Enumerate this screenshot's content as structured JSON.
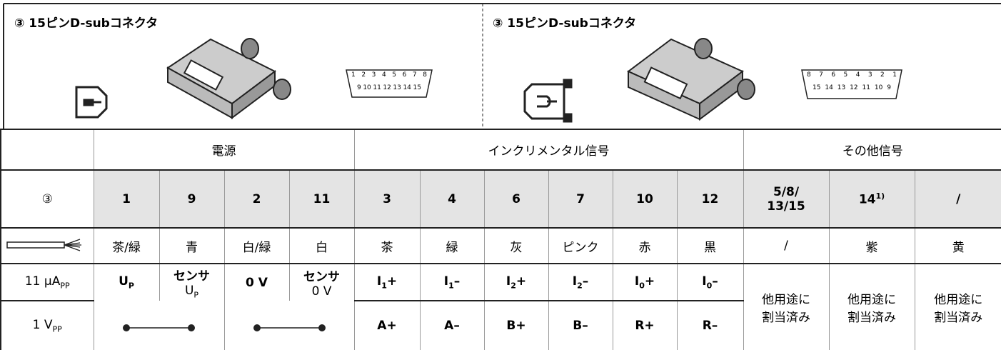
{
  "top": {
    "left": {
      "title": "③ 15ピンD-subコネクタ",
      "pins_row1": [
        "1",
        "2",
        "3",
        "4",
        "5",
        "6",
        "7",
        "8"
      ],
      "pins_row2": [
        "9",
        "10",
        "11",
        "12",
        "13",
        "14",
        "15"
      ]
    },
    "right": {
      "title": "③ 15ピンD-subコネクタ",
      "pins_row1": [
        "8",
        "7",
        "6",
        "5",
        "4",
        "3",
        "2",
        "1"
      ],
      "pins_row2": [
        "15",
        "14",
        "13",
        "12",
        "11",
        "10",
        "9"
      ]
    }
  },
  "table": {
    "groups": [
      "電源",
      "インクリメンタル信号",
      "その他信号"
    ],
    "pins": [
      "③",
      "1",
      "9",
      "2",
      "11",
      "3",
      "4",
      "6",
      "7",
      "10",
      "12",
      [
        [
          {
            "text": "5/8/"
          }
        ],
        [
          {
            "text": "13/15"
          }
        ]
      ],
      [
        [
          {
            "text": "14"
          },
          {
            "text": "1)",
            "sup": true
          }
        ]
      ],
      "/"
    ],
    "colors": [
      "茶/緑",
      "青",
      "白/緑",
      "白",
      "茶",
      "緑",
      "灰",
      "ピンク",
      "赤",
      "黒",
      "/",
      "紫",
      "黄"
    ],
    "signals": {
      "label": [
        [
          {
            "text": "11 µA"
          },
          {
            "text": "PP",
            "sub": true
          }
        ]
      ],
      "cells": [
        [
          [
            {
              "text": "U"
            },
            {
              "text": "P",
              "sub": true
            }
          ]
        ],
        [
          [
            {
              "text": "センサ"
            }
          ],
          [
            {
              "text": "U"
            },
            {
              "text": "P",
              "sub": true
            }
          ]
        ],
        [
          [
            {
              "text": "0 V"
            }
          ]
        ],
        [
          [
            {
              "text": "センサ"
            }
          ],
          [
            {
              "text": "0 V"
            }
          ]
        ],
        [
          [
            {
              "text": "I"
            },
            {
              "text": "1",
              "sub": true
            },
            {
              "text": "+"
            }
          ]
        ],
        [
          [
            {
              "text": "I"
            },
            {
              "text": "1",
              "sub": true
            },
            {
              "text": "–"
            }
          ]
        ],
        [
          [
            {
              "text": "I"
            },
            {
              "text": "2",
              "sub": true
            },
            {
              "text": "+"
            }
          ]
        ],
        [
          [
            {
              "text": "I"
            },
            {
              "text": "2",
              "sub": true
            },
            {
              "text": "–"
            }
          ]
        ],
        [
          [
            {
              "text": "I"
            },
            {
              "text": "0",
              "sub": true
            },
            {
              "text": "+"
            }
          ]
        ],
        [
          [
            {
              "text": "I"
            },
            {
              "text": "0",
              "sub": true
            },
            {
              "text": "–"
            }
          ]
        ],
        [
          [
            {
              "text": "他用途に"
            }
          ],
          [
            {
              "text": "割当済み"
            }
          ]
        ],
        [
          [
            {
              "text": "他用途に"
            }
          ],
          [
            {
              "text": "割当済み"
            }
          ]
        ],
        [
          [
            {
              "text": "他用途に"
            }
          ],
          [
            {
              "text": "割当済み"
            }
          ]
        ]
      ]
    },
    "analog": {
      "label": [
        [
          {
            "text": "1 V"
          },
          {
            "text": "PP",
            "sub": true
          }
        ]
      ],
      "cells": [
        "A+",
        "A–",
        "B+",
        "B–",
        "R+",
        "R–"
      ]
    }
  }
}
